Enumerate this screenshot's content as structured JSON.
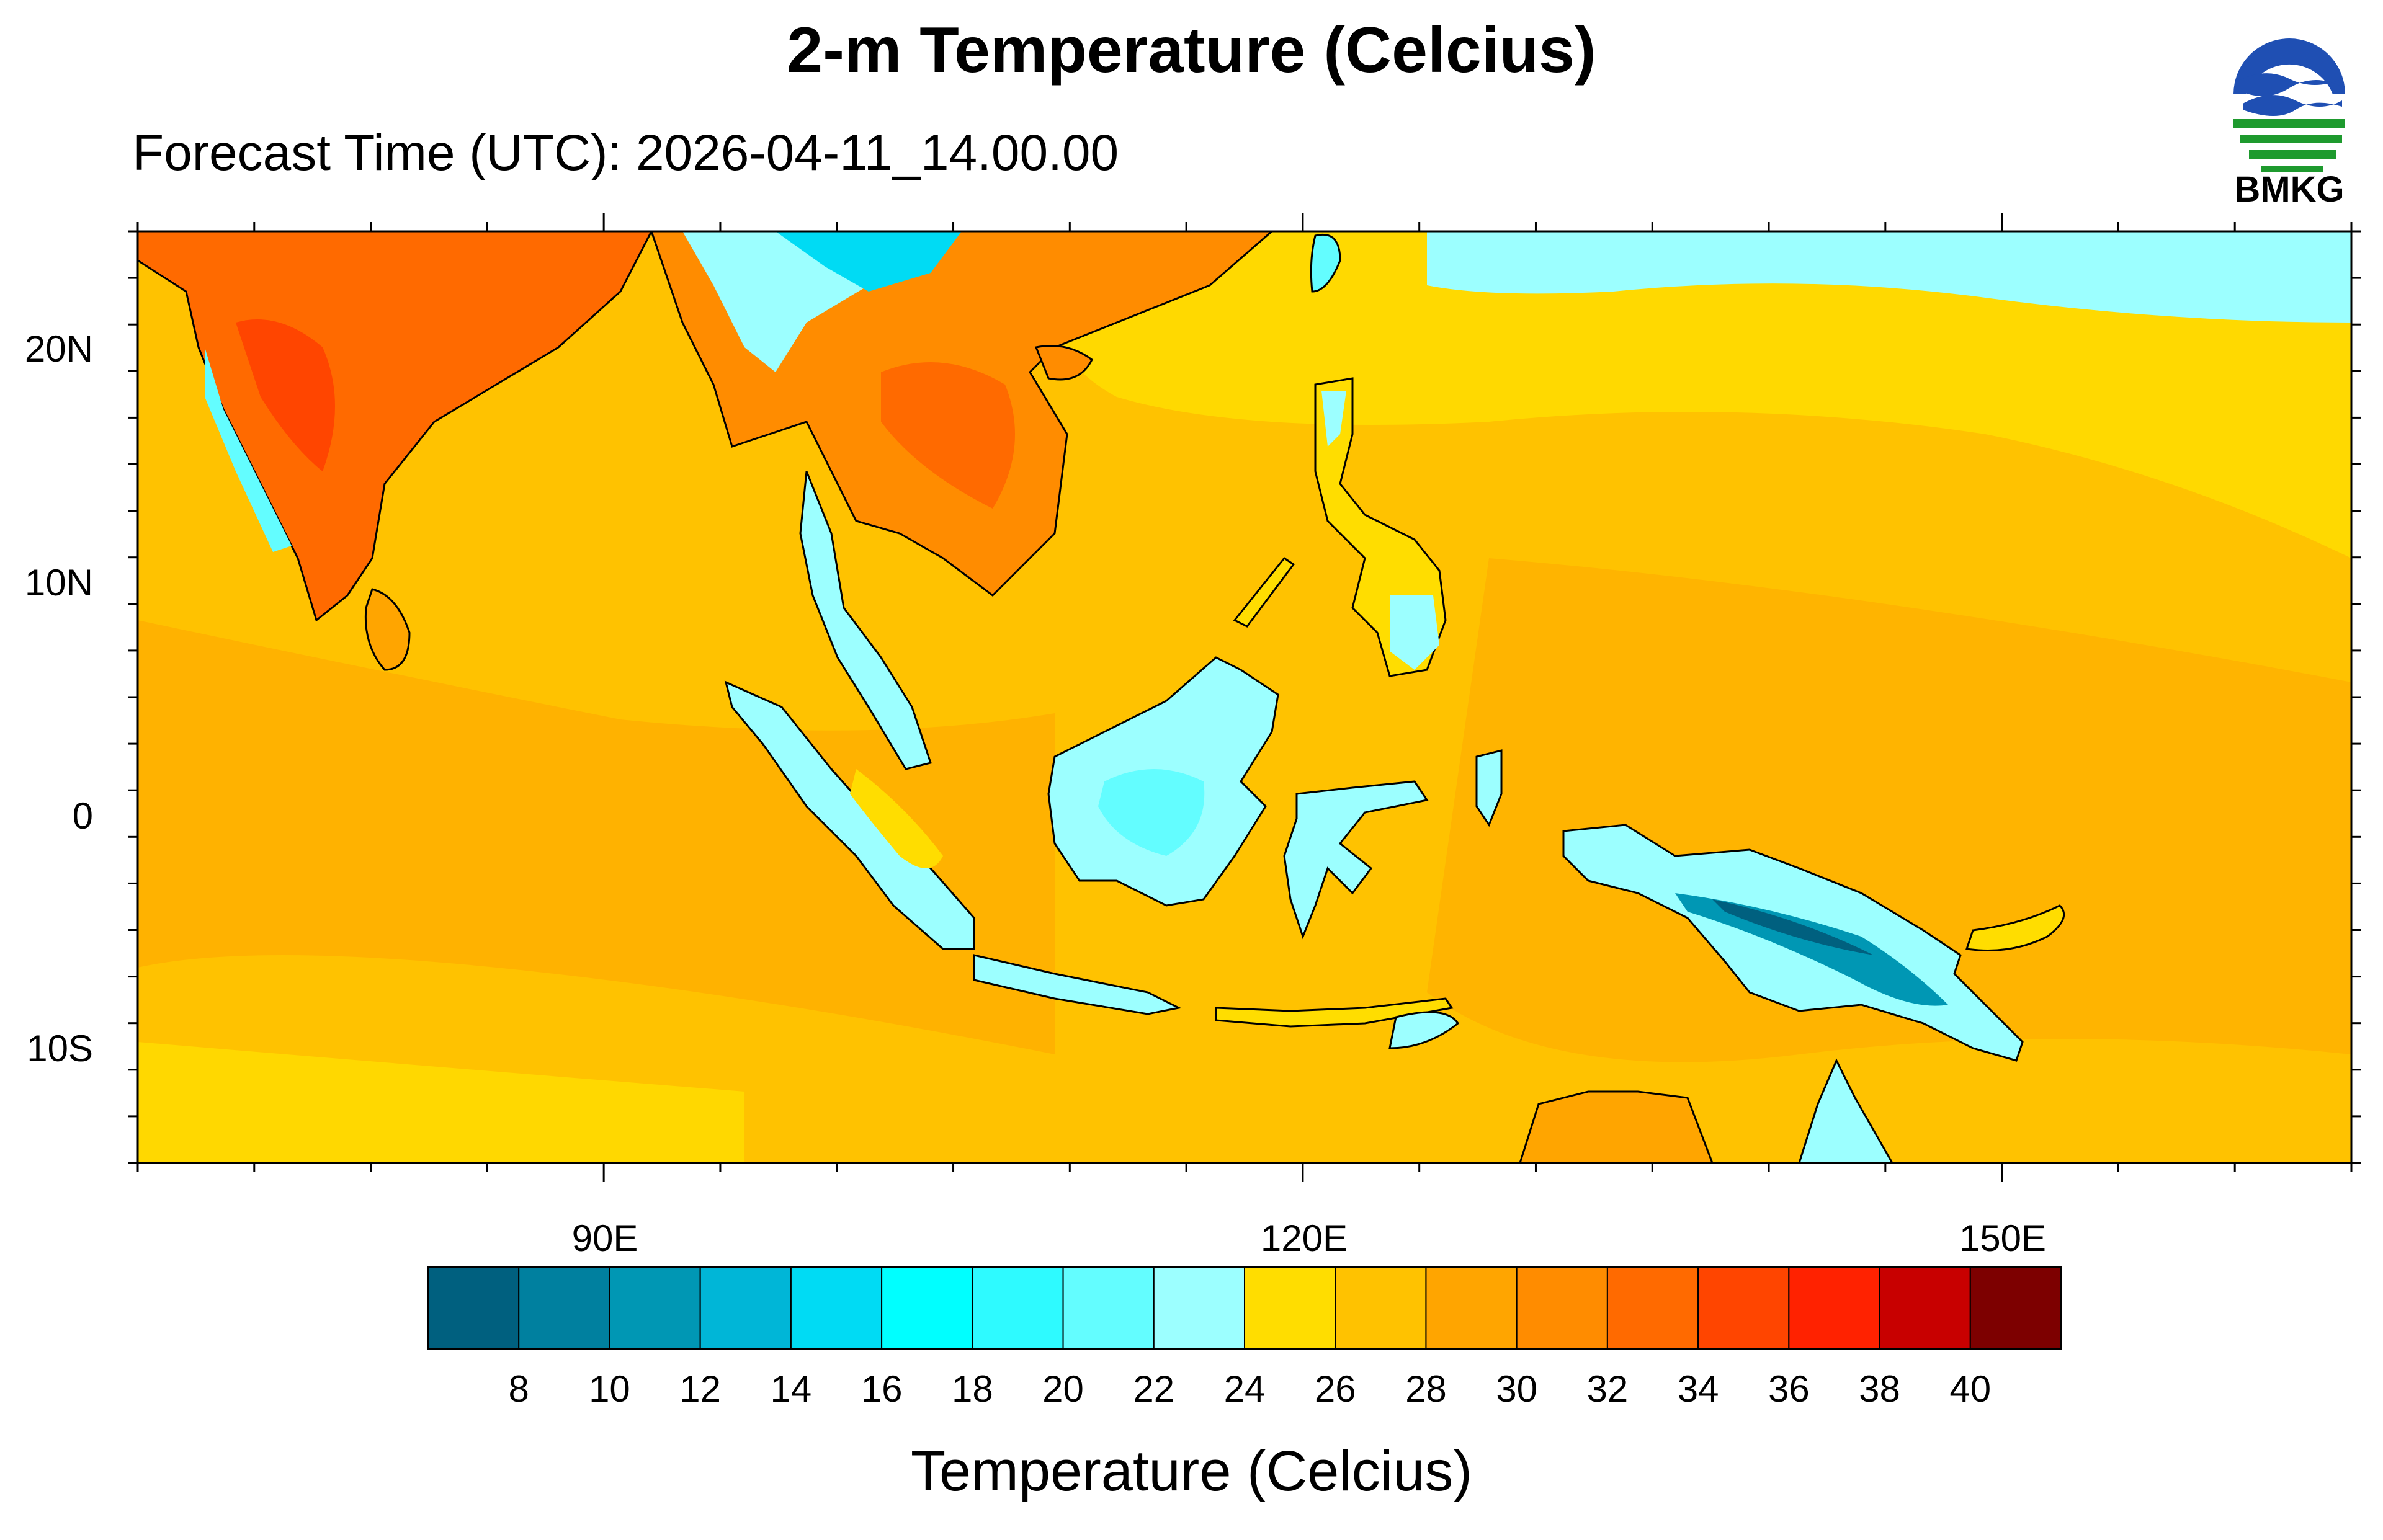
{
  "title": "2-m Temperature (Celcius)",
  "subtitle": "Forecast Time (UTC): 2026-04-11_14.00.00",
  "logo": {
    "text": "BMKG",
    "icon": "bmkg-logo-icon",
    "colors": {
      "blue": "#1f4fb3",
      "green": "#1e9a2e"
    }
  },
  "map": {
    "projection": "cylindrical-equidistant",
    "lon_range": [
      70,
      165
    ],
    "lat_range": [
      -15,
      25
    ],
    "lat_labels": [
      "20N",
      "10N",
      "0",
      "10S"
    ],
    "lon_labels": [
      "90E",
      "120E",
      "150E"
    ],
    "background_field_note": "2-m temperature shaded",
    "regions": [
      {
        "name": "ocean-south-indian",
        "temp_class": 28
      },
      {
        "name": "ocean-pacific-north",
        "temp_class": 24
      },
      {
        "name": "india",
        "temp_class": 34
      },
      {
        "name": "indochina",
        "temp_class": 32
      },
      {
        "name": "borneo",
        "temp_class": 22
      },
      {
        "name": "sumatra",
        "temp_class": 22
      },
      {
        "name": "new-guinea-highlands",
        "temp_class": 12
      }
    ]
  },
  "colorbar": {
    "title": "Temperature (Celcius)",
    "labels": [
      "8",
      "10",
      "12",
      "14",
      "16",
      "18",
      "20",
      "22",
      "24",
      "26",
      "28",
      "30",
      "32",
      "34",
      "36",
      "38",
      "40"
    ],
    "colors": [
      "#00607f",
      "#00809f",
      "#0097b4",
      "#00b6d7",
      "#00dbf4",
      "#00ffff",
      "#2efaff",
      "#63fdff",
      "#9cffff",
      "#ffdd00",
      "#ffc200",
      "#ffa500",
      "#ff8c00",
      "#ff6a00",
      "#ff4500",
      "#ff2200",
      "#c80000",
      "#7d0000"
    ]
  }
}
